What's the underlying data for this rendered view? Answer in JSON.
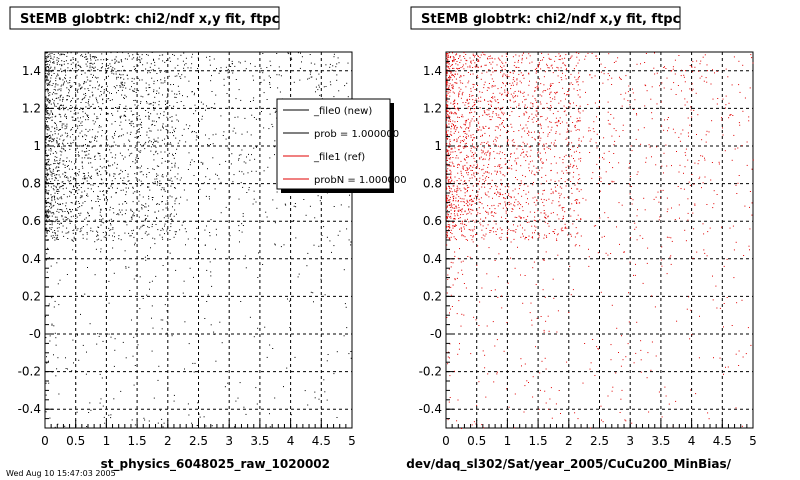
{
  "colors": {
    "new": "#000000",
    "ref": "#e00000",
    "background": "#ffffff"
  },
  "chart_data": [
    {
      "type": "scatter",
      "title": "StEMB globtrk: chi2/ndf x,y fit, ftpc",
      "xlabel": "st_physics_6048025_raw_1020002",
      "ylabel": "",
      "xlim": [
        0,
        5
      ],
      "ylim": [
        -0.5,
        1.5
      ],
      "grid": true,
      "x_ticks": [
        "0",
        "0.5",
        "1",
        "1.5",
        "2",
        "2.5",
        "3",
        "3.5",
        "4",
        "4.5",
        "5"
      ],
      "y_ticks": [
        "-0.4",
        "-0.2",
        "-0",
        "0.2",
        "0.4",
        "0.6",
        "0.8",
        "1",
        "1.2",
        "1.4"
      ],
      "series": [
        {
          "name": "_file0 (new)",
          "color": "#000000"
        }
      ],
      "legend": {
        "position": "top-right",
        "entries": [
          {
            "label": "_file0 (new)",
            "color": "#000000"
          },
          {
            "label": "prob = 1.000000",
            "color": "#000000"
          },
          {
            "label": "_file1 (ref)",
            "color": "#e00000"
          },
          {
            "label": "probN = 1.000000",
            "color": "#e00000"
          }
        ]
      }
    },
    {
      "type": "scatter",
      "title": "StEMB globtrk: chi2/ndf x,y fit, ftpc",
      "xlabel": "dev/daq_sl302/Sat/year_2005/CuCu200_MinBias/",
      "ylabel": "",
      "xlim": [
        0,
        5
      ],
      "ylim": [
        -0.5,
        1.5
      ],
      "grid": true,
      "x_ticks": [
        "0",
        "0.5",
        "1",
        "1.5",
        "2",
        "2.5",
        "3",
        "3.5",
        "4",
        "4.5",
        "5"
      ],
      "y_ticks": [
        "-0.4",
        "-0.2",
        "-0",
        "0.2",
        "0.4",
        "0.6",
        "0.8",
        "1",
        "1.2",
        "1.4"
      ],
      "series": [
        {
          "name": "_file1 (ref)",
          "color": "#e00000"
        }
      ]
    }
  ],
  "footer": "Wed Aug 10 15:47:03 2005"
}
